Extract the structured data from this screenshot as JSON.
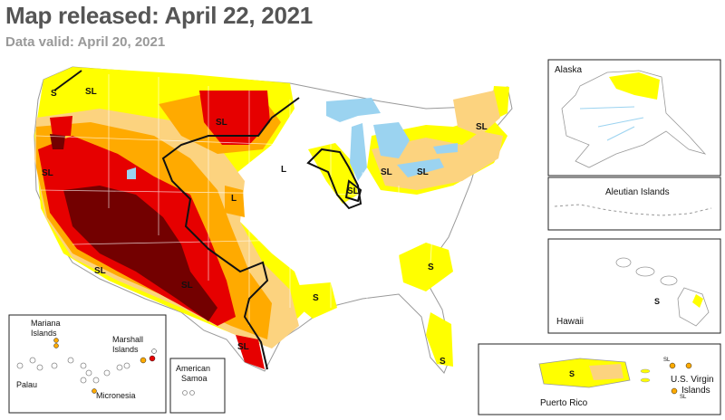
{
  "header": {
    "title": "Map released: April 22, 2021",
    "subtitle": "Data valid: April 20, 2021"
  },
  "colors": {
    "abnormally_dry": "#ffff00",
    "moderate": "#fcd37f",
    "severe": "#ffaa00",
    "extreme": "#e60000",
    "exceptional": "#730000",
    "water": "#9bd3f0",
    "border": "#999999"
  },
  "inset_labels": {
    "alaska": "Alaska",
    "aleutian": "Aleutian Islands",
    "hawaii": "Hawaii",
    "puerto_rico": "Puerto Rico",
    "usvi_line1": "U.S. Virgin",
    "usvi_line2": "Islands",
    "mariana_line1": "Mariana",
    "mariana_line2": "Islands",
    "marshall_line1": "Marshall",
    "marshall_line2": "Islands",
    "palau": "Palau",
    "micronesia": "Micronesia",
    "samoa_line1": "American",
    "samoa_line2": "Samoa"
  },
  "impact_labels": {
    "s": "S",
    "l": "L",
    "sl": "SL"
  }
}
